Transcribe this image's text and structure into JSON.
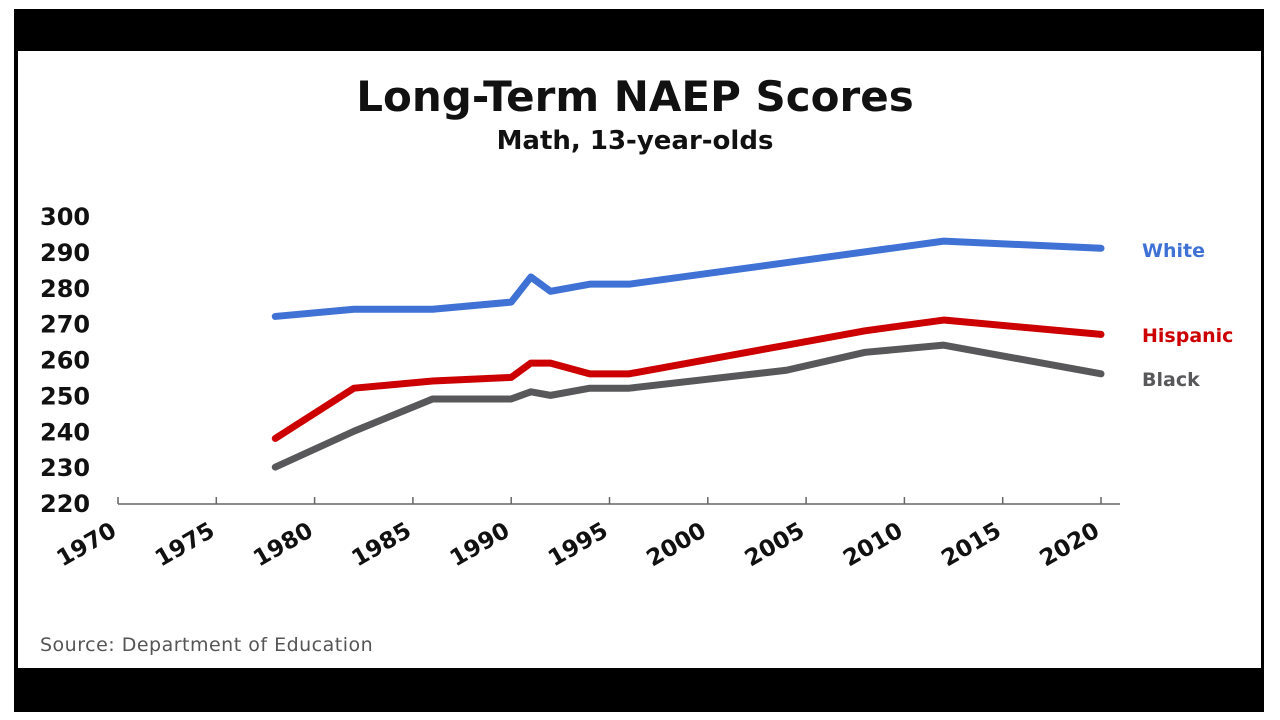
{
  "chart_data": {
    "type": "line",
    "title": "Long-Term NAEP Scores",
    "subtitle": "Math, 13-year-olds",
    "xlabel": "",
    "ylabel": "",
    "xlim": [
      1970,
      2020
    ],
    "ylim": [
      220,
      300
    ],
    "xticks": [
      "1970",
      "1975",
      "1980",
      "1985",
      "1990",
      "1995",
      "2000",
      "2005",
      "2010",
      "2015",
      "2020"
    ],
    "yticks": [
      "300",
      "290",
      "280",
      "270",
      "260",
      "250",
      "240",
      "230",
      "220"
    ],
    "legend": "right (inline labels)",
    "series": [
      {
        "name": "White",
        "color": "#3f72d4",
        "x": [
          1978,
          1982,
          1986,
          1990,
          1991,
          1992,
          1994,
          1996,
          2012,
          2020
        ],
        "y": [
          272,
          274,
          274,
          276,
          283,
          279,
          281,
          281,
          293,
          291
        ]
      },
      {
        "name": "Hispanic",
        "color": "#cc0000",
        "x": [
          1978,
          1982,
          1986,
          1990,
          1991,
          1992,
          1994,
          1996,
          2004,
          2008,
          2012,
          2020
        ],
        "y": [
          238,
          252,
          254,
          255,
          259,
          259,
          256,
          256,
          264,
          268,
          271,
          267
        ]
      },
      {
        "name": "Black",
        "color": "#58585b",
        "x": [
          1978,
          1982,
          1986,
          1990,
          1991,
          1992,
          1994,
          1996,
          2004,
          2008,
          2012,
          2020
        ],
        "y": [
          230,
          240,
          249,
          249,
          251,
          250,
          252,
          252,
          257,
          262,
          264,
          256
        ]
      }
    ]
  },
  "source": "Source: Department of Education"
}
